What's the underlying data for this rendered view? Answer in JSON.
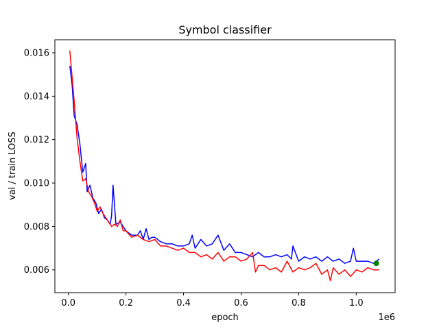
{
  "colors": {
    "val_series": "#0000ff",
    "train_series": "#ff0000",
    "best_marker": "#008000",
    "axes": "#000000",
    "background": "#ffffff"
  },
  "chart_data": {
    "type": "line",
    "title": "Symbol classifier",
    "xlabel": "epoch",
    "ylabel": "val / train LOSS",
    "x_offset_label": "1e6",
    "xlim": [
      -0.047,
      1.135
    ],
    "ylim": [
      0.00495,
      0.0166
    ],
    "x_ticks": [
      0.0,
      0.2,
      0.4,
      0.6,
      0.8,
      1.0
    ],
    "x_tick_labels": [
      "0.0",
      "0.2",
      "0.4",
      "0.6",
      "0.8",
      "1.0"
    ],
    "y_ticks": [
      0.006,
      0.008,
      0.01,
      0.012,
      0.014,
      0.016
    ],
    "y_tick_labels": [
      "0.006",
      "0.008",
      "0.010",
      "0.012",
      "0.014",
      "0.016"
    ],
    "grid": false,
    "legend": "none",
    "x_unit_multiplier": 1000000,
    "series": [
      {
        "color": "#0000ff",
        "x": [
          0.005,
          0.013,
          0.02,
          0.03,
          0.04,
          0.05,
          0.06,
          0.065,
          0.075,
          0.085,
          0.095,
          0.105,
          0.115,
          0.125,
          0.135,
          0.145,
          0.15,
          0.155,
          0.165,
          0.18,
          0.2,
          0.22,
          0.24,
          0.25,
          0.26,
          0.27,
          0.28,
          0.29,
          0.3,
          0.32,
          0.34,
          0.36,
          0.38,
          0.4,
          0.42,
          0.43,
          0.44,
          0.46,
          0.48,
          0.5,
          0.52,
          0.54,
          0.56,
          0.58,
          0.6,
          0.62,
          0.64,
          0.66,
          0.68,
          0.7,
          0.72,
          0.74,
          0.76,
          0.775,
          0.78,
          0.8,
          0.82,
          0.84,
          0.86,
          0.88,
          0.9,
          0.92,
          0.94,
          0.96,
          0.98,
          0.99,
          1.0,
          1.02,
          1.04,
          1.06,
          1.08
        ],
        "y": [
          0.0154,
          0.0145,
          0.0131,
          0.0127,
          0.0118,
          0.0105,
          0.0109,
          0.0096,
          0.0099,
          0.0093,
          0.0091,
          0.0086,
          0.0088,
          0.0084,
          0.0083,
          0.0081,
          0.0085,
          0.0099,
          0.0081,
          0.0082,
          0.0078,
          0.0076,
          0.0076,
          0.0078,
          0.0074,
          0.0079,
          0.0074,
          0.0075,
          0.0075,
          0.0073,
          0.0072,
          0.0072,
          0.0071,
          0.0071,
          0.0072,
          0.0076,
          0.007,
          0.0074,
          0.0071,
          0.0072,
          0.0076,
          0.0069,
          0.0072,
          0.0068,
          0.0068,
          0.0067,
          0.0066,
          0.0068,
          0.0066,
          0.0066,
          0.0067,
          0.0066,
          0.0067,
          0.0065,
          0.0071,
          0.0064,
          0.0066,
          0.0065,
          0.0066,
          0.0064,
          0.0066,
          0.0064,
          0.0065,
          0.0063,
          0.0064,
          0.007,
          0.0064,
          0.0064,
          0.0064,
          0.0063,
          0.0065
        ]
      },
      {
        "color": "#ff0000",
        "x": [
          0.005,
          0.012,
          0.02,
          0.03,
          0.04,
          0.05,
          0.06,
          0.07,
          0.08,
          0.09,
          0.1,
          0.11,
          0.12,
          0.13,
          0.14,
          0.15,
          0.16,
          0.17,
          0.18,
          0.19,
          0.2,
          0.22,
          0.24,
          0.26,
          0.28,
          0.3,
          0.32,
          0.34,
          0.36,
          0.38,
          0.4,
          0.42,
          0.44,
          0.46,
          0.48,
          0.5,
          0.52,
          0.54,
          0.56,
          0.58,
          0.6,
          0.62,
          0.64,
          0.65,
          0.66,
          0.68,
          0.7,
          0.72,
          0.74,
          0.76,
          0.78,
          0.8,
          0.82,
          0.84,
          0.86,
          0.88,
          0.9,
          0.91,
          0.92,
          0.94,
          0.96,
          0.98,
          1.0,
          1.02,
          1.04,
          1.06,
          1.08
        ],
        "y": [
          0.0161,
          0.015,
          0.0138,
          0.0121,
          0.011,
          0.0101,
          0.0102,
          0.0096,
          0.0094,
          0.0091,
          0.0087,
          0.0089,
          0.0086,
          0.0084,
          0.0082,
          0.008,
          0.0081,
          0.008,
          0.0083,
          0.0078,
          0.0078,
          0.0075,
          0.0076,
          0.0074,
          0.0073,
          0.0074,
          0.0071,
          0.0071,
          0.007,
          0.0069,
          0.007,
          0.0068,
          0.0068,
          0.0066,
          0.0067,
          0.0065,
          0.0068,
          0.0064,
          0.0066,
          0.0066,
          0.0064,
          0.0065,
          0.0068,
          0.0059,
          0.0062,
          0.0062,
          0.006,
          0.0061,
          0.0059,
          0.0064,
          0.0059,
          0.0061,
          0.006,
          0.0061,
          0.0063,
          0.0058,
          0.006,
          0.0055,
          0.0061,
          0.0058,
          0.006,
          0.0057,
          0.006,
          0.0059,
          0.0061,
          0.006,
          0.006
        ]
      }
    ],
    "best_point": {
      "x": 1.07,
      "y": 0.0063,
      "color": "#008000"
    }
  }
}
